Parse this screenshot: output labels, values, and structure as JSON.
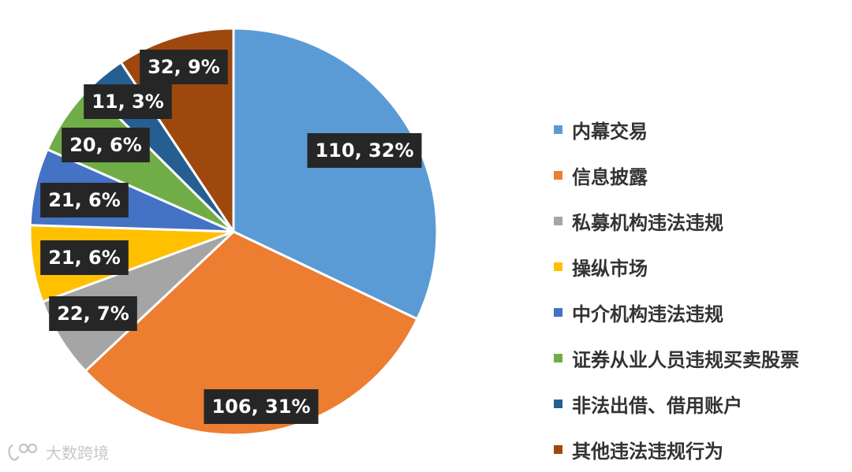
{
  "chart_data": {
    "type": "pie",
    "start_angle_deg": 0,
    "direction": "clockwise",
    "slices": [
      {
        "name": "内幕交易",
        "value": 110,
        "percent": "32%",
        "label": "110, 32%",
        "color": "#5B9BD5"
      },
      {
        "name": "信息披露",
        "value": 106,
        "percent": "31%",
        "label": "106, 31%",
        "color": "#ED7D31"
      },
      {
        "name": "私募机构违法违规",
        "value": 22,
        "percent": "7%",
        "label": "22, 7%",
        "color": "#A5A5A5"
      },
      {
        "name": "操纵市场",
        "value": 21,
        "percent": "6%",
        "label": "21, 6%",
        "color": "#FFC000"
      },
      {
        "name": "中介机构违法违规",
        "value": 21,
        "percent": "6%",
        "label": "21, 6%",
        "color": "#4472C4"
      },
      {
        "name": "证券从业人员违规买卖股票",
        "value": 20,
        "percent": "6%",
        "label": "20, 6%",
        "color": "#70AD47"
      },
      {
        "name": "非法出借、借用账户",
        "value": 11,
        "percent": "3%",
        "label": "11, 3%",
        "color": "#255E91"
      },
      {
        "name": "其他违法违规行为",
        "value": 32,
        "percent": "9%",
        "label": "32, 9%",
        "color": "#9E480E"
      }
    ],
    "legend_position": "right",
    "label_style": {
      "background": "#262626",
      "text_color": "#FFFFFF"
    }
  },
  "watermark": {
    "text": "大数跨境"
  }
}
